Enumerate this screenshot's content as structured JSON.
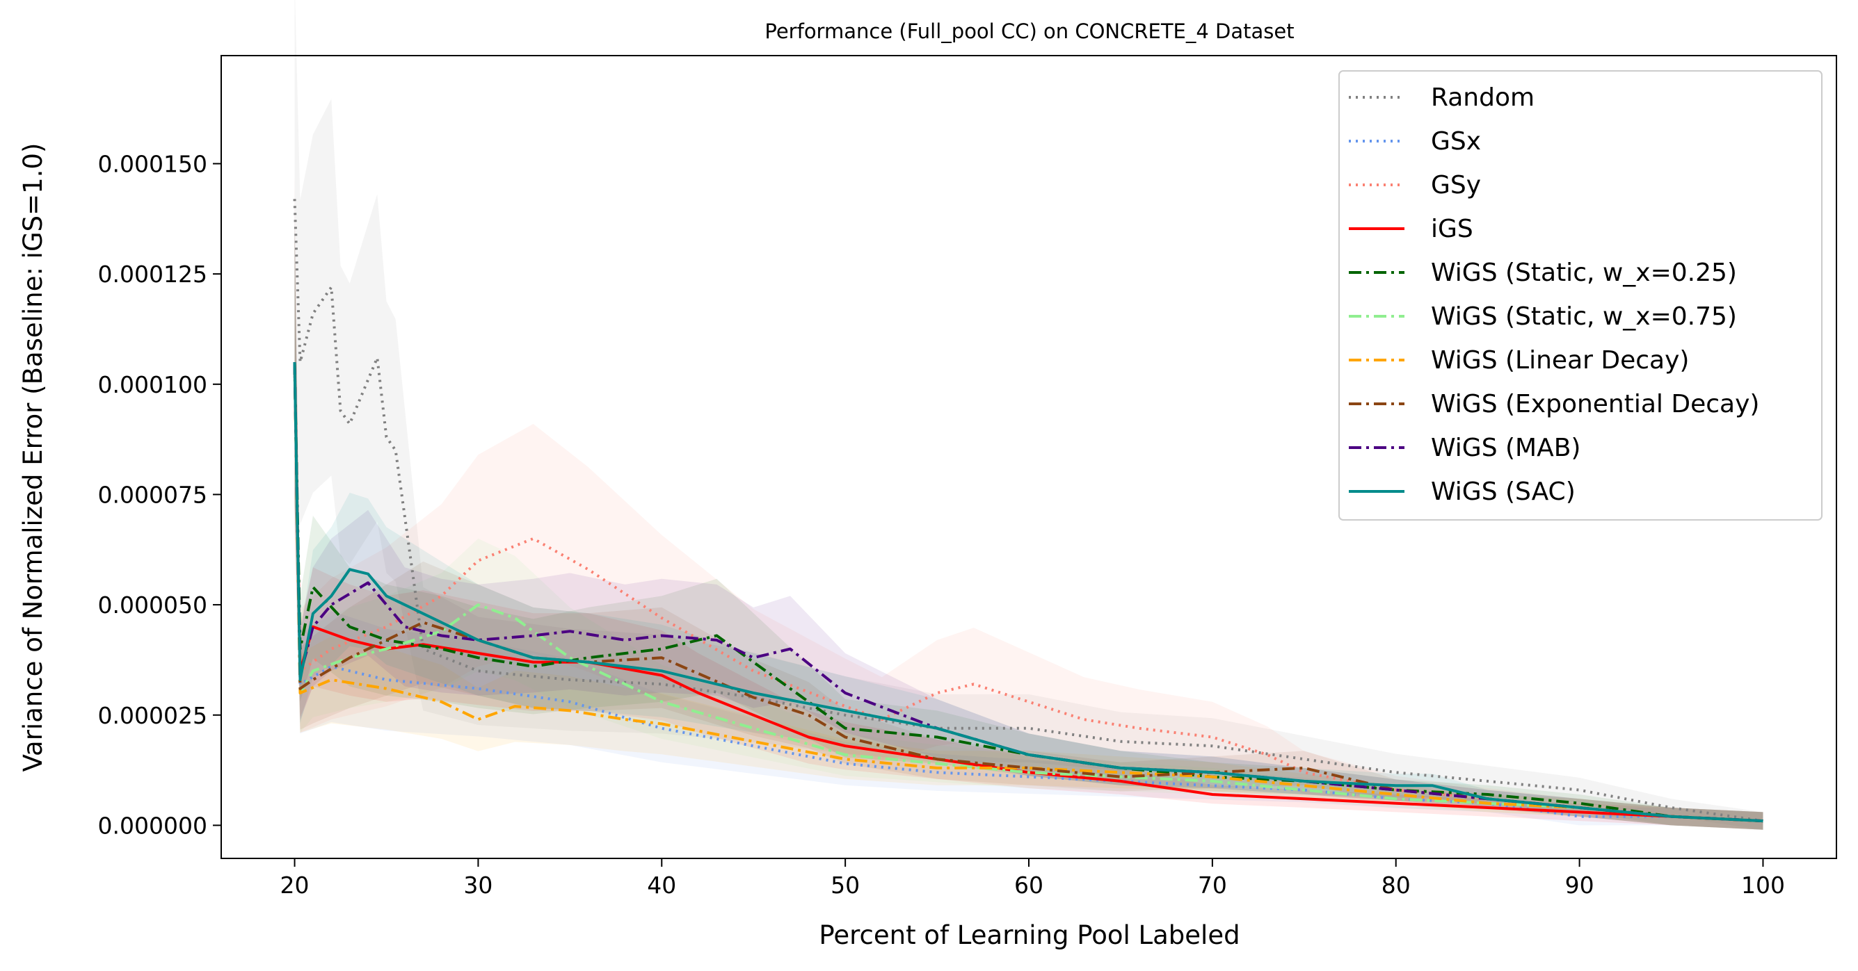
{
  "chart_data": {
    "type": "line",
    "title": "Performance (Full_pool CC) on CONCRETE_4 Dataset",
    "xlabel": "Percent of Learning Pool Labeled",
    "ylabel": "Variance of Normalized Error (Baseline: iGS=1.0)",
    "xlim": [
      16,
      104
    ],
    "ylim": [
      -7.5e-06,
      0.0001745
    ],
    "xticks": [
      20,
      30,
      40,
      50,
      60,
      70,
      80,
      90,
      100
    ],
    "yticks": [
      0.0,
      2.5e-05,
      5e-05,
      7.5e-05,
      0.0001,
      0.000125,
      0.00015
    ],
    "ytick_labels": [
      "0.000000",
      "0.000025",
      "0.000050",
      "0.000075",
      "0.000100",
      "0.000125",
      "0.000150"
    ],
    "grid": false,
    "legend_position": "top-right",
    "series": [
      {
        "name": "Random",
        "color": "#808080",
        "dash": "dotted",
        "band": 0.35,
        "x": [
          20,
          20.3,
          21,
          22,
          22.5,
          23,
          24,
          24.5,
          25,
          25.5,
          27,
          30,
          35,
          40,
          45,
          50,
          55,
          60,
          65,
          70,
          75,
          80,
          85,
          90,
          95,
          100
        ],
        "y": [
          0.000142,
          0.000105,
          0.000116,
          0.000122,
          9.4e-05,
          9.1e-05,
          0.000101,
          0.000106,
          8.8e-05,
          8.5e-05,
          4e-05,
          3.5e-05,
          3.3e-05,
          3.2e-05,
          2.9e-05,
          2.5e-05,
          2.2e-05,
          2.2e-05,
          1.9e-05,
          1.8e-05,
          1.5e-05,
          1.2e-05,
          1e-05,
          8e-06,
          4e-06,
          1e-06
        ]
      },
      {
        "name": "GSx",
        "color": "#6495ed",
        "dash": "dotted",
        "band": 0.35,
        "x": [
          20,
          20.3,
          22,
          25,
          30,
          35,
          40,
          45,
          50,
          55,
          60,
          65,
          70,
          75,
          80,
          85,
          90,
          95,
          100
        ],
        "y": [
          0.000105,
          3.2e-05,
          3.6e-05,
          3.3e-05,
          3.1e-05,
          2.8e-05,
          2.2e-05,
          1.8e-05,
          1.4e-05,
          1.2e-05,
          1.1e-05,
          1e-05,
          9e-06,
          8e-06,
          6e-06,
          5e-06,
          2e-06,
          2e-06,
          1e-06
        ]
      },
      {
        "name": "GSy",
        "color": "#fa8072",
        "dash": "dotted",
        "band": 0.4,
        "x": [
          20,
          20.3,
          22,
          25,
          28,
          30,
          33,
          36,
          40,
          45,
          50,
          52,
          55,
          57,
          60,
          63,
          66,
          70,
          73,
          75,
          80,
          85,
          90,
          95,
          100
        ],
        "y": [
          0.000105,
          3.5e-05,
          4e-05,
          4.5e-05,
          5.2e-05,
          6e-05,
          6.5e-05,
          5.8e-05,
          4.7e-05,
          3.5e-05,
          2.7e-05,
          2.4e-05,
          3e-05,
          3.2e-05,
          2.8e-05,
          2.4e-05,
          2.2e-05,
          2e-05,
          1.6e-05,
          1.2e-05,
          8e-06,
          6e-06,
          4e-06,
          2e-06,
          1e-06
        ]
      },
      {
        "name": "iGS",
        "color": "#ff0000",
        "dash": "solid",
        "band": 0.3,
        "x": [
          20,
          20.3,
          21,
          23,
          25,
          27,
          30,
          33,
          36,
          40,
          42,
          45,
          48,
          50,
          55,
          60,
          65,
          70,
          75,
          80,
          85,
          90,
          95,
          100
        ],
        "y": [
          0.000105,
          3.5e-05,
          4.5e-05,
          4.2e-05,
          4e-05,
          4.1e-05,
          3.9e-05,
          3.7e-05,
          3.7e-05,
          3.4e-05,
          3e-05,
          2.5e-05,
          2e-05,
          1.8e-05,
          1.5e-05,
          1.2e-05,
          1e-05,
          7e-06,
          6e-06,
          5e-06,
          4e-06,
          3e-06,
          2e-06,
          1e-06
        ]
      },
      {
        "name": "WiGS (Static, w_x=0.25)",
        "color": "#006400",
        "dash": "dashdot",
        "band": 0.3,
        "x": [
          20,
          20.3,
          21,
          23,
          25,
          28,
          30,
          33,
          36,
          40,
          43,
          45,
          48,
          50,
          55,
          60,
          65,
          70,
          75,
          80,
          85,
          90,
          95,
          100
        ],
        "y": [
          0.000105,
          4e-05,
          5.4e-05,
          4.5e-05,
          4.2e-05,
          4e-05,
          3.8e-05,
          3.6e-05,
          3.8e-05,
          4e-05,
          4.3e-05,
          3.7e-05,
          2.8e-05,
          2.2e-05,
          2e-05,
          1.6e-05,
          1.3e-05,
          1.1e-05,
          1e-05,
          8e-06,
          7e-06,
          5e-06,
          2e-06,
          1e-06
        ]
      },
      {
        "name": "WiGS (Static, w_x=0.75)",
        "color": "#90ee90",
        "dash": "dashdot",
        "band": 0.3,
        "x": [
          20,
          20.3,
          21,
          23,
          25,
          28,
          30,
          32,
          35,
          38,
          40,
          45,
          50,
          55,
          60,
          65,
          70,
          75,
          80,
          85,
          90,
          95,
          100
        ],
        "y": [
          0.000105,
          3e-05,
          3.5e-05,
          3.8e-05,
          4e-05,
          4.4e-05,
          5e-05,
          4.7e-05,
          3.8e-05,
          3.2e-05,
          2.8e-05,
          2.2e-05,
          1.6e-05,
          1.4e-05,
          1.2e-05,
          1.1e-05,
          1e-05,
          8e-06,
          6e-06,
          5e-06,
          4e-06,
          2e-06,
          1e-06
        ]
      },
      {
        "name": "WiGS (Linear Decay)",
        "color": "#ffa500",
        "dash": "dashdot",
        "band": 0.3,
        "x": [
          20,
          20.3,
          22,
          25,
          28,
          30,
          32,
          35,
          38,
          40,
          45,
          50,
          55,
          60,
          65,
          70,
          75,
          80,
          85,
          90,
          95,
          100
        ],
        "y": [
          0.000105,
          3e-05,
          3.3e-05,
          3.1e-05,
          2.8e-05,
          2.4e-05,
          2.7e-05,
          2.6e-05,
          2.4e-05,
          2.3e-05,
          1.9e-05,
          1.5e-05,
          1.3e-05,
          1.3e-05,
          1.2e-05,
          1.1e-05,
          9e-06,
          7e-06,
          5e-06,
          4e-06,
          2e-06,
          1e-06
        ]
      },
      {
        "name": "WiGS (Exponential Decay)",
        "color": "#8b4513",
        "dash": "dashdot",
        "band": 0.3,
        "x": [
          20,
          20.3,
          21,
          23,
          25,
          27,
          30,
          33,
          36,
          40,
          45,
          48,
          50,
          55,
          60,
          65,
          70,
          75,
          80,
          85,
          90,
          95,
          100
        ],
        "y": [
          0.000105,
          3.1e-05,
          3.3e-05,
          3.8e-05,
          4.2e-05,
          4.6e-05,
          4.2e-05,
          3.8e-05,
          3.7e-05,
          3.8e-05,
          2.9e-05,
          2.5e-05,
          2e-05,
          1.5e-05,
          1.3e-05,
          1.1e-05,
          1.2e-05,
          1.3e-05,
          8e-06,
          6e-06,
          4e-06,
          2e-06,
          1e-06
        ]
      },
      {
        "name": "WiGS (MAB)",
        "color": "#4b0082",
        "dash": "dashdot",
        "band": 0.3,
        "x": [
          20,
          20.3,
          21,
          22,
          24,
          26,
          28,
          30,
          33,
          35,
          38,
          40,
          43,
          45,
          47,
          50,
          55,
          60,
          65,
          70,
          75,
          80,
          85,
          90,
          95,
          100
        ],
        "y": [
          0.000105,
          3.4e-05,
          4.5e-05,
          5e-05,
          5.5e-05,
          4.5e-05,
          4.3e-05,
          4.2e-05,
          4.3e-05,
          4.4e-05,
          4.2e-05,
          4.3e-05,
          4.2e-05,
          3.8e-05,
          4e-05,
          3e-05,
          2.2e-05,
          1.6e-05,
          1.3e-05,
          1.2e-05,
          1e-05,
          8e-06,
          6e-06,
          4e-06,
          2e-06,
          1e-06
        ]
      },
      {
        "name": "WiGS (SAC)",
        "color": "#008b8b",
        "dash": "solid",
        "band": 0.3,
        "x": [
          20,
          20.3,
          21,
          22,
          23,
          24,
          25,
          27,
          30,
          33,
          36,
          40,
          43,
          45,
          50,
          55,
          60,
          65,
          70,
          75,
          80,
          82,
          85,
          90,
          95,
          100
        ],
        "y": [
          0.000105,
          3.3e-05,
          4.8e-05,
          5.2e-05,
          5.8e-05,
          5.7e-05,
          5.2e-05,
          4.8e-05,
          4.2e-05,
          3.8e-05,
          3.7e-05,
          3.5e-05,
          3.2e-05,
          3e-05,
          2.6e-05,
          2.2e-05,
          1.6e-05,
          1.3e-05,
          1.2e-05,
          1e-05,
          9e-06,
          9e-06,
          6e-06,
          4e-06,
          2e-06,
          1e-06
        ]
      }
    ]
  }
}
